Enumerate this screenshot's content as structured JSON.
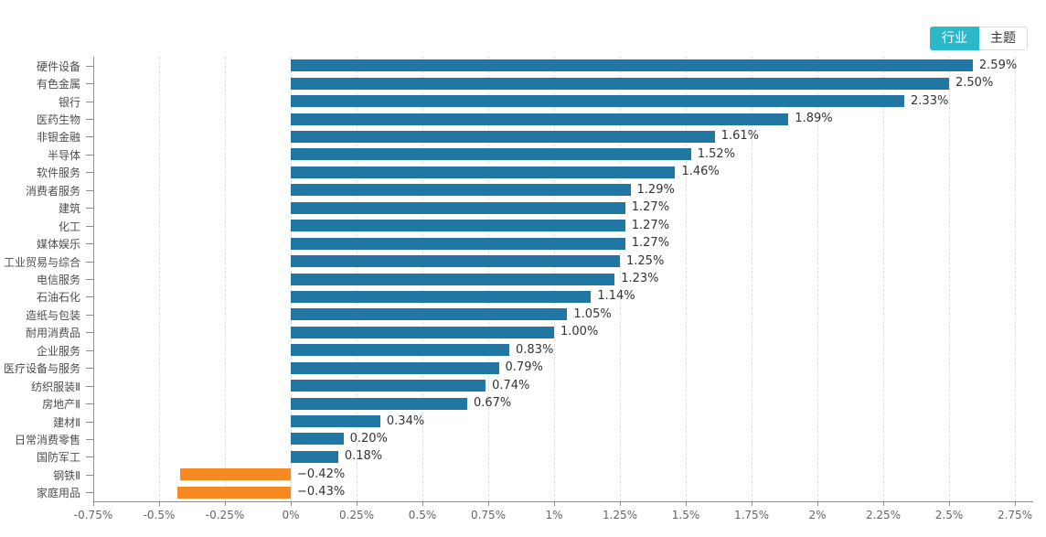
{
  "toggle": {
    "industry_label": "行业",
    "theme_label": "主题",
    "active": "行业"
  },
  "colors": {
    "accent_toggle": "#2BB8CB",
    "positive_bar": "#2177A3",
    "negative_bar": "#F6891F",
    "grid": "#DDDDDD",
    "axis": "#8F8F8F",
    "category_text": "#4D4D4D",
    "value_text": "#333333",
    "tick_text": "#666666"
  },
  "chart_data": {
    "type": "bar",
    "orientation": "horizontal",
    "title": "",
    "xlabel": "",
    "ylabel": "",
    "legend": "none",
    "grid": "vertical-dashed",
    "xlim": [
      -0.75,
      2.75
    ],
    "x_tick_labels": [
      "-0.75%",
      "-0.5%",
      "-0.25%",
      "0%",
      "0.25%",
      "0.5%",
      "0.75%",
      "1%",
      "1.25%",
      "1.5%",
      "1.75%",
      "2%",
      "2.25%",
      "2.5%",
      "2.75%"
    ],
    "x_tick_values": [
      -0.75,
      -0.5,
      -0.25,
      0,
      0.25,
      0.5,
      0.75,
      1,
      1.25,
      1.5,
      1.75,
      2,
      2.25,
      2.5,
      2.75
    ],
    "categories": [
      "硬件设备",
      "有色金属",
      "银行",
      "医药生物",
      "非银金融",
      "半导体",
      "软件服务",
      "消费者服务",
      "建筑",
      "化工",
      "媒体娱乐",
      "工业贸易与综合",
      "电信服务",
      "石油石化",
      "造纸与包装",
      "耐用消费品",
      "企业服务",
      "医疗设备与服务",
      "纺织服装Ⅱ",
      "房地产Ⅱ",
      "建材Ⅱ",
      "日常消费零售",
      "国防军工",
      "钢铁Ⅱ",
      "家庭用品"
    ],
    "values": [
      2.59,
      2.5,
      2.33,
      1.89,
      1.61,
      1.52,
      1.46,
      1.29,
      1.27,
      1.27,
      1.27,
      1.25,
      1.23,
      1.14,
      1.05,
      1.0,
      0.83,
      0.79,
      0.74,
      0.67,
      0.34,
      0.2,
      0.18,
      -0.42,
      -0.43
    ],
    "value_labels": [
      "2.59%",
      "2.50%",
      "2.33%",
      "1.89%",
      "1.61%",
      "1.52%",
      "1.46%",
      "1.29%",
      "1.27%",
      "1.27%",
      "1.27%",
      "1.25%",
      "1.23%",
      "1.14%",
      "1.05%",
      "1.00%",
      "0.83%",
      "0.79%",
      "0.74%",
      "0.67%",
      "0.34%",
      "0.20%",
      "0.18%",
      "−0.42%",
      "−0.43%"
    ]
  }
}
